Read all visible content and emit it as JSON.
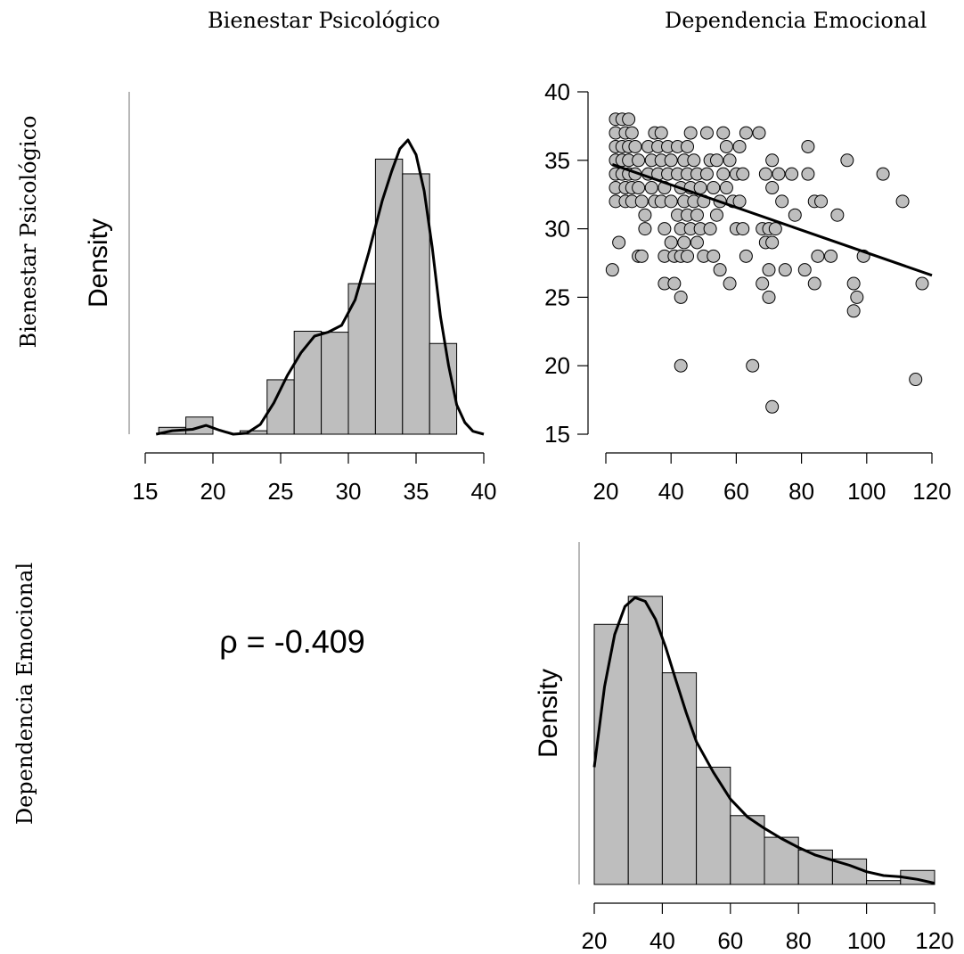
{
  "headers": {
    "col1": "Bienestar Psicológico",
    "col2": "Dependencia Emocional",
    "row1": "Bienestar Psicológico",
    "row2": "Dependencia Emocional"
  },
  "correlation_label": "ρ = -0.409",
  "colors": {
    "bar_fill": "#bebebe",
    "point_fill": "#bebebe",
    "stroke": "#000000"
  },
  "chart_data": [
    {
      "type": "bar",
      "panel": "histogram-bienestar",
      "ylabel": "Density",
      "xlim": [
        15,
        40
      ],
      "xticks": [
        15,
        20,
        25,
        30,
        35,
        40
      ],
      "bin_edges": [
        16,
        18,
        20,
        22,
        24,
        26,
        28,
        30,
        32,
        34,
        36,
        38
      ],
      "values": [
        0.007,
        0.0175,
        0.0,
        0.0035,
        0.0555,
        0.105,
        0.104,
        0.1535,
        0.2805,
        0.2655,
        0.0925
      ],
      "density_curve": {
        "x": [
          15.8,
          17,
          18.5,
          19.5,
          20.5,
          21.5,
          22.5,
          23.5,
          24.5,
          25.5,
          26.5,
          27.5,
          28.5,
          29.5,
          30.5,
          31.5,
          32.5,
          33.2,
          33.8,
          34.4,
          35,
          35.6,
          36.2,
          36.8,
          37.4,
          38,
          38.6,
          39.2,
          40
        ],
        "y": [
          0.0,
          0.0035,
          0.005,
          0.009,
          0.004,
          0.0,
          0.001,
          0.01,
          0.032,
          0.06,
          0.083,
          0.1,
          0.104,
          0.111,
          0.137,
          0.185,
          0.238,
          0.268,
          0.291,
          0.3,
          0.285,
          0.248,
          0.19,
          0.12,
          0.07,
          0.03,
          0.012,
          0.003,
          0.0
        ]
      }
    },
    {
      "type": "scatter",
      "panel": "scatter-dependencia-vs-bienestar",
      "xlim": [
        20,
        120
      ],
      "ylim": [
        15,
        40
      ],
      "xticks": [
        20,
        40,
        60,
        80,
        100,
        120
      ],
      "yticks": [
        15,
        20,
        25,
        30,
        35,
        40
      ],
      "points": [
        [
          23,
          38
        ],
        [
          25,
          38
        ],
        [
          27,
          38
        ],
        [
          23,
          37
        ],
        [
          26,
          37
        ],
        [
          28,
          37
        ],
        [
          23,
          36
        ],
        [
          25,
          36
        ],
        [
          27,
          36
        ],
        [
          29,
          36
        ],
        [
          23,
          35
        ],
        [
          25,
          35
        ],
        [
          27,
          35
        ],
        [
          30,
          35
        ],
        [
          23,
          34
        ],
        [
          25,
          34
        ],
        [
          27,
          34
        ],
        [
          29,
          34
        ],
        [
          23,
          33
        ],
        [
          26,
          33
        ],
        [
          28,
          33
        ],
        [
          30,
          33
        ],
        [
          23,
          32
        ],
        [
          26,
          32
        ],
        [
          28,
          32
        ],
        [
          31,
          32
        ],
        [
          22,
          27
        ],
        [
          24,
          29
        ],
        [
          30,
          28
        ],
        [
          31,
          28
        ],
        [
          32,
          30
        ],
        [
          32,
          31
        ],
        [
          33,
          34
        ],
        [
          33,
          36
        ],
        [
          34,
          35
        ],
        [
          34,
          33
        ],
        [
          35,
          37
        ],
        [
          35,
          32
        ],
        [
          36,
          36
        ],
        [
          36,
          34
        ],
        [
          37,
          37
        ],
        [
          37,
          35
        ],
        [
          37,
          32
        ],
        [
          38,
          30
        ],
        [
          38,
          33
        ],
        [
          38,
          28
        ],
        [
          38,
          26
        ],
        [
          39,
          34
        ],
        [
          39,
          36
        ],
        [
          40,
          35
        ],
        [
          40,
          32
        ],
        [
          40,
          29
        ],
        [
          41,
          28
        ],
        [
          41,
          26
        ],
        [
          42,
          36
        ],
        [
          42,
          34
        ],
        [
          42,
          31
        ],
        [
          43,
          33
        ],
        [
          43,
          30
        ],
        [
          43,
          28
        ],
        [
          43,
          25
        ],
        [
          43,
          20
        ],
        [
          44,
          35
        ],
        [
          44,
          32
        ],
        [
          44,
          29
        ],
        [
          45,
          36
        ],
        [
          45,
          34
        ],
        [
          45,
          31
        ],
        [
          45,
          28
        ],
        [
          46,
          37
        ],
        [
          46,
          33
        ],
        [
          46,
          30
        ],
        [
          47,
          35
        ],
        [
          47,
          32
        ],
        [
          48,
          34
        ],
        [
          48,
          31
        ],
        [
          48,
          29
        ],
        [
          49,
          33
        ],
        [
          49,
          30
        ],
        [
          50,
          32
        ],
        [
          50,
          28
        ],
        [
          51,
          37
        ],
        [
          51,
          34
        ],
        [
          52,
          35
        ],
        [
          52,
          30
        ],
        [
          53,
          33
        ],
        [
          53,
          28
        ],
        [
          54,
          31
        ],
        [
          54,
          35
        ],
        [
          55,
          27
        ],
        [
          55,
          32
        ],
        [
          56,
          34
        ],
        [
          56,
          37
        ],
        [
          57,
          36
        ],
        [
          57,
          33
        ],
        [
          58,
          26
        ],
        [
          58,
          35
        ],
        [
          59,
          32
        ],
        [
          60,
          30
        ],
        [
          60,
          34
        ],
        [
          61,
          36
        ],
        [
          61,
          32
        ],
        [
          62,
          30
        ],
        [
          62,
          34
        ],
        [
          63,
          37
        ],
        [
          63,
          28
        ],
        [
          65,
          20
        ],
        [
          67,
          37
        ],
        [
          68,
          26
        ],
        [
          68,
          30
        ],
        [
          69,
          29
        ],
        [
          69,
          34
        ],
        [
          70,
          27
        ],
        [
          70,
          25
        ],
        [
          70,
          30
        ],
        [
          71,
          33
        ],
        [
          71,
          35
        ],
        [
          71,
          29
        ],
        [
          71,
          17
        ],
        [
          72,
          30
        ],
        [
          73,
          34
        ],
        [
          74,
          32
        ],
        [
          75,
          27
        ],
        [
          77,
          34
        ],
        [
          78,
          31
        ],
        [
          81,
          27
        ],
        [
          82,
          34
        ],
        [
          82,
          36
        ],
        [
          84,
          26
        ],
        [
          84,
          32
        ],
        [
          85,
          28
        ],
        [
          86,
          32
        ],
        [
          89,
          28
        ],
        [
          91,
          31
        ],
        [
          94,
          35
        ],
        [
          96,
          24
        ],
        [
          96,
          26
        ],
        [
          97,
          25
        ],
        [
          99,
          28
        ],
        [
          105,
          34
        ],
        [
          111,
          32
        ],
        [
          115,
          19
        ],
        [
          117,
          26
        ]
      ],
      "regression_line": {
        "x": [
          22,
          120
        ],
        "y": [
          34.7,
          26.6
        ]
      }
    },
    {
      "type": "bar",
      "panel": "histogram-dependencia",
      "ylabel": "Density",
      "xlim": [
        20,
        120
      ],
      "xticks": [
        20,
        40,
        60,
        80,
        100,
        120
      ],
      "bin_edges": [
        20,
        30,
        40,
        50,
        60,
        70,
        80,
        90,
        100,
        110,
        120
      ],
      "values": [
        0.0204,
        0.0226,
        0.0166,
        0.0092,
        0.0054,
        0.0037,
        0.0027,
        0.002,
        0.0003,
        0.0011
      ],
      "density_curve": {
        "x": [
          20,
          23,
          26,
          29,
          32,
          35,
          38,
          41,
          44,
          47,
          50,
          55,
          60,
          65,
          70,
          75,
          80,
          85,
          90,
          95,
          100,
          105,
          110,
          115,
          120
        ],
        "y": [
          0.0092,
          0.0155,
          0.0196,
          0.0218,
          0.0225,
          0.0222,
          0.0208,
          0.0186,
          0.016,
          0.0135,
          0.0112,
          0.0088,
          0.0067,
          0.0053,
          0.0044,
          0.0036,
          0.0029,
          0.0023,
          0.0019,
          0.0015,
          0.001,
          0.0007,
          0.0006,
          0.0004,
          0.0001
        ]
      }
    }
  ]
}
